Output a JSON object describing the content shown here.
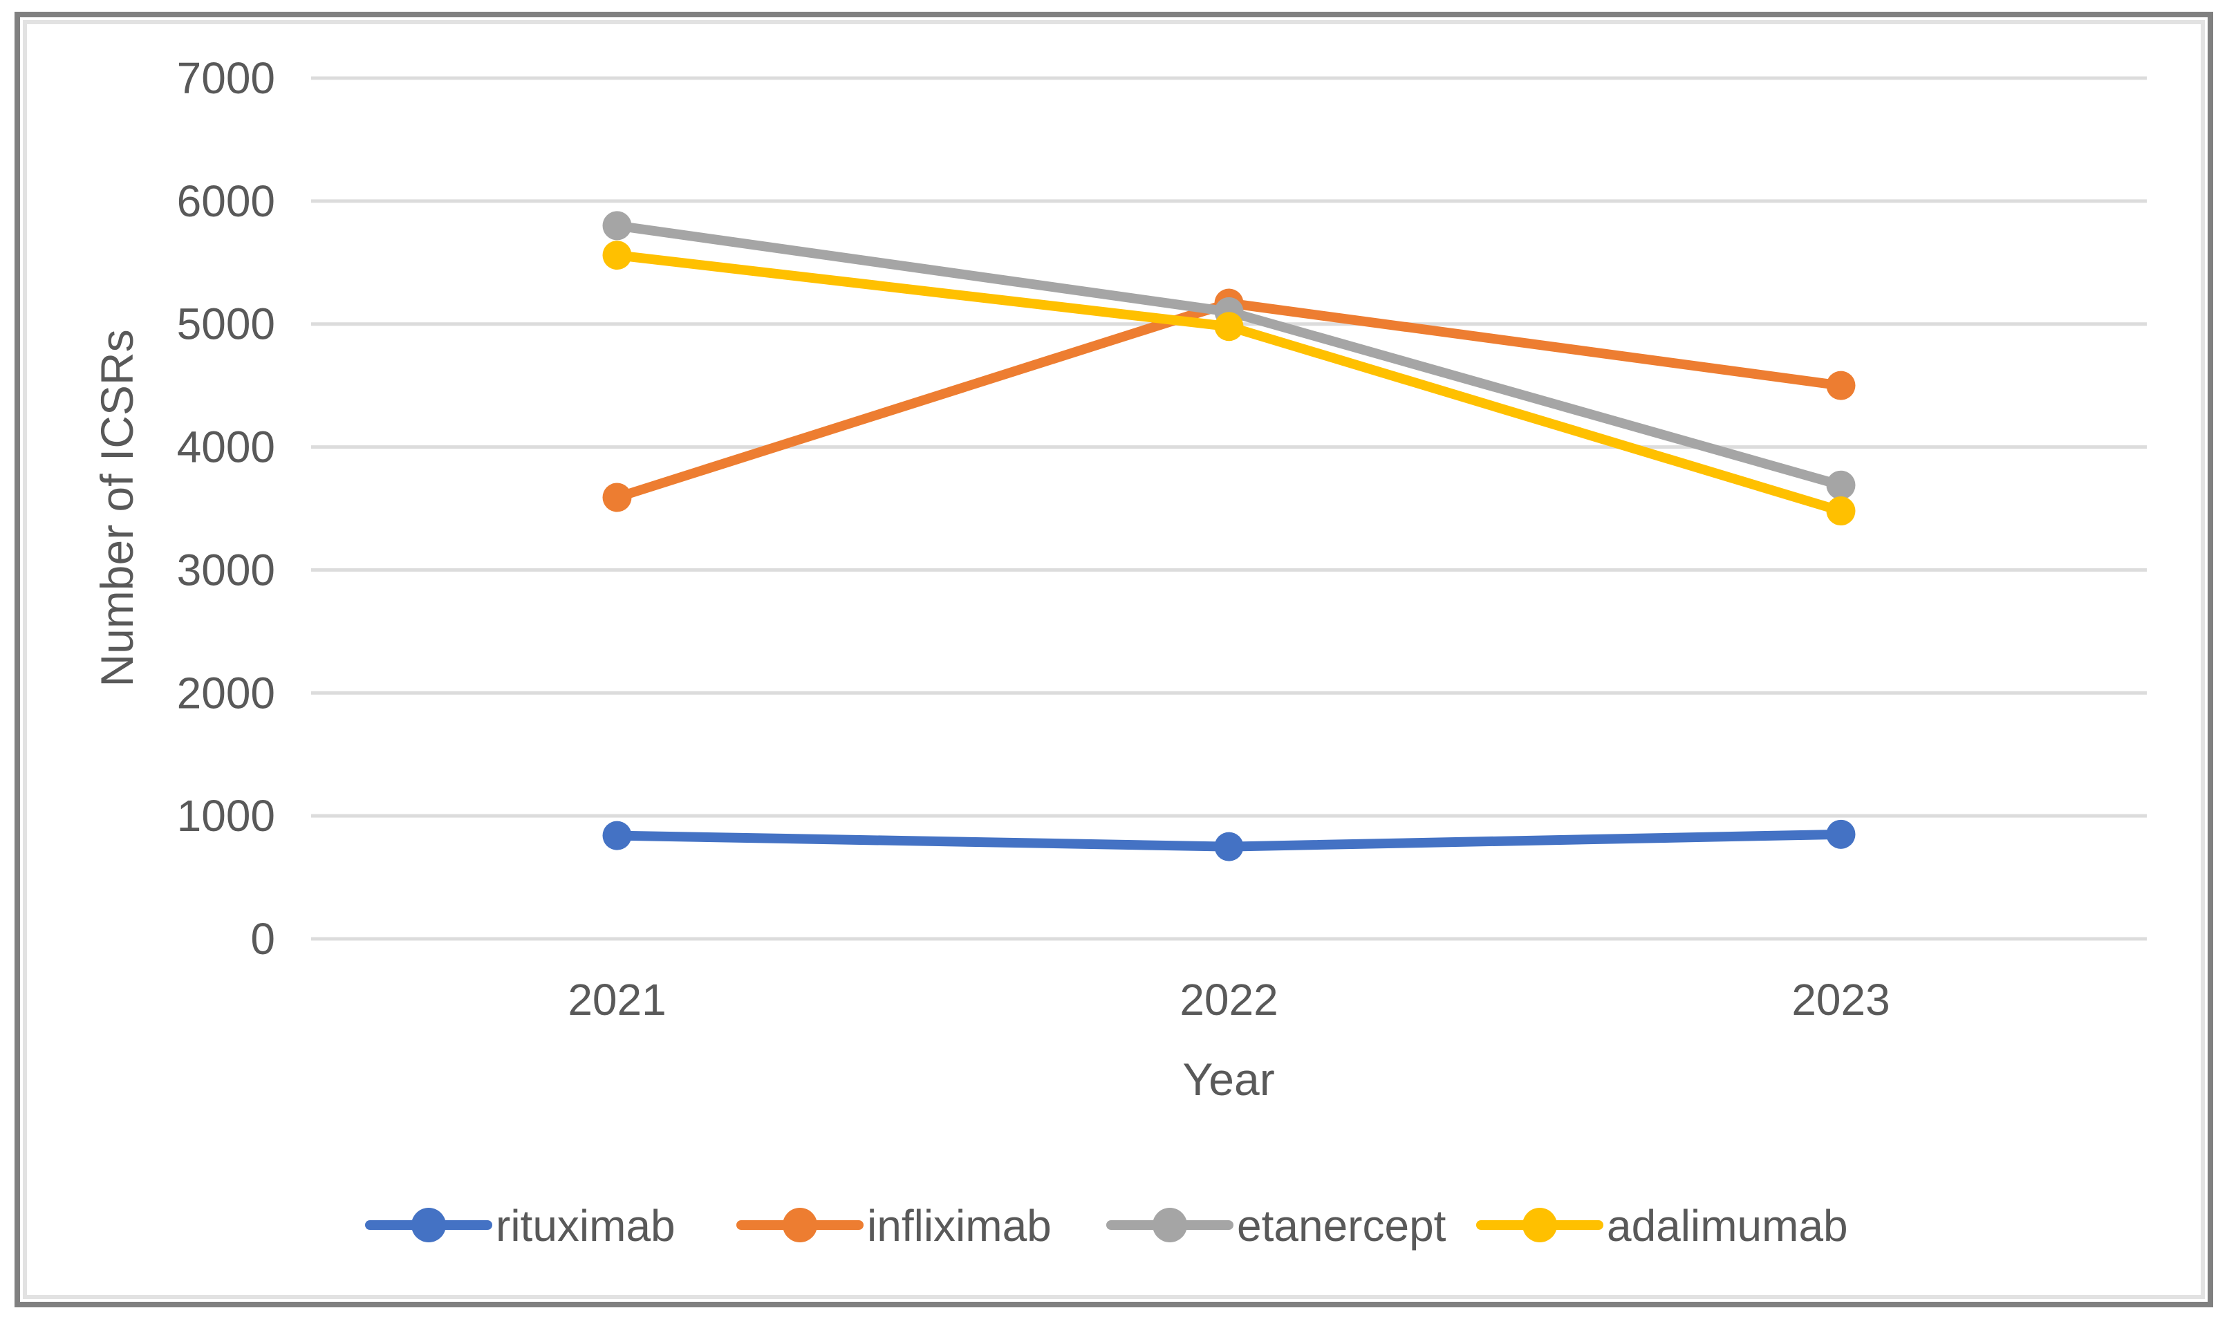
{
  "chart_data": {
    "type": "line",
    "title": "",
    "categories": [
      "2021",
      "2022",
      "2023"
    ],
    "xlabel": "Year",
    "ylabel": "Number of ICSRs",
    "ylim": [
      0,
      7000
    ],
    "y_ticks": [
      "0",
      "1000",
      "2000",
      "3000",
      "4000",
      "5000",
      "6000",
      "7000"
    ],
    "grid": true,
    "legend_position": "bottom",
    "series": [
      {
        "name": "rituximab",
        "color": "#4472C4",
        "values": [
          840,
          750,
          850
        ]
      },
      {
        "name": "infliximab",
        "color": "#ED7D31",
        "values": [
          3590,
          5170,
          4500
        ]
      },
      {
        "name": "etanercept",
        "color": "#A5A5A5",
        "values": [
          5800,
          5100,
          3690
        ]
      },
      {
        "name": "adalimumab",
        "color": "#FFC000",
        "values": [
          5560,
          4980,
          3480
        ]
      }
    ]
  },
  "colors": {
    "gridline": "#DCDCDC",
    "axis_text": "#595959",
    "border_outer": "#808080",
    "border_inner": "#E2E2E2",
    "background": "#FFFFFF"
  }
}
